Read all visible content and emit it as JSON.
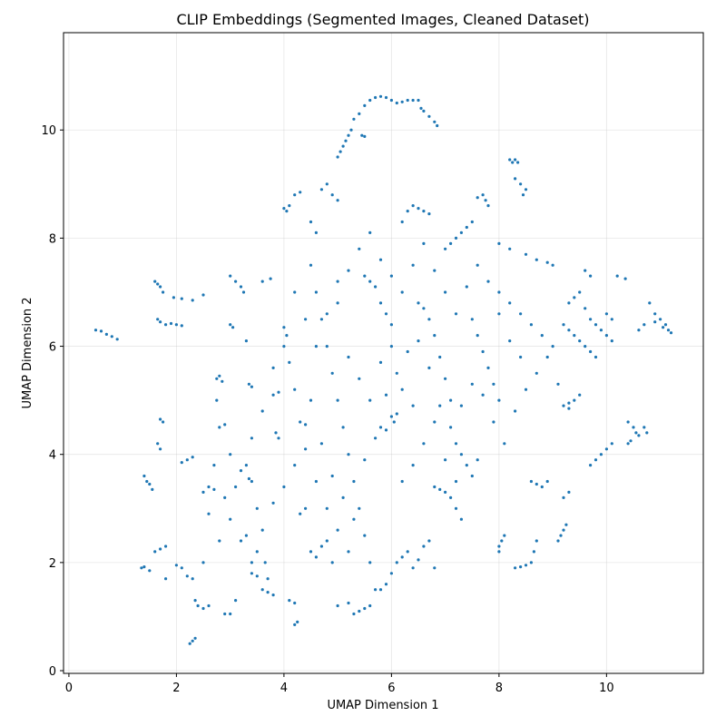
{
  "chart_data": {
    "type": "scatter",
    "title": "CLIP Embeddings (Segmented Images, Cleaned Dataset)",
    "xlabel": "UMAP Dimension 1",
    "ylabel": "UMAP Dimension 2",
    "xlim": [
      -0.1,
      11.8
    ],
    "ylim": [
      -0.05,
      11.8
    ],
    "xticks": [
      0,
      2,
      4,
      6,
      8,
      10
    ],
    "yticks": [
      0,
      2,
      4,
      6,
      8,
      10
    ],
    "grid": true,
    "point_color": "#1f77b4",
    "legend": "none",
    "points": [
      [
        0.5,
        6.3
      ],
      [
        0.6,
        6.28
      ],
      [
        0.7,
        6.22
      ],
      [
        0.8,
        6.18
      ],
      [
        0.9,
        6.13
      ],
      [
        1.6,
        7.2
      ],
      [
        1.65,
        7.15
      ],
      [
        1.7,
        7.1
      ],
      [
        1.75,
        7.0
      ],
      [
        1.65,
        6.5
      ],
      [
        1.7,
        6.45
      ],
      [
        1.8,
        6.4
      ],
      [
        1.9,
        6.42
      ],
      [
        2.0,
        6.4
      ],
      [
        2.1,
        6.38
      ],
      [
        1.95,
        6.9
      ],
      [
        2.1,
        6.88
      ],
      [
        2.3,
        6.85
      ],
      [
        2.5,
        6.95
      ],
      [
        1.7,
        4.65
      ],
      [
        1.75,
        4.6
      ],
      [
        1.65,
        4.2
      ],
      [
        1.7,
        4.1
      ],
      [
        1.4,
        3.6
      ],
      [
        1.45,
        3.5
      ],
      [
        1.5,
        3.45
      ],
      [
        1.55,
        3.35
      ],
      [
        1.35,
        1.9
      ],
      [
        1.4,
        1.92
      ],
      [
        1.5,
        1.85
      ],
      [
        1.6,
        2.2
      ],
      [
        1.7,
        2.25
      ],
      [
        1.8,
        2.3
      ],
      [
        1.8,
        1.7
      ],
      [
        2.0,
        1.95
      ],
      [
        2.1,
        1.9
      ],
      [
        2.2,
        1.75
      ],
      [
        2.3,
        1.7
      ],
      [
        2.35,
        1.3
      ],
      [
        2.4,
        1.2
      ],
      [
        2.5,
        1.15
      ],
      [
        2.6,
        1.2
      ],
      [
        2.25,
        0.5
      ],
      [
        2.3,
        0.55
      ],
      [
        2.35,
        0.6
      ],
      [
        2.2,
        3.9
      ],
      [
        2.1,
        3.85
      ],
      [
        2.3,
        3.95
      ],
      [
        2.5,
        3.3
      ],
      [
        2.6,
        3.4
      ],
      [
        2.7,
        3.35
      ],
      [
        2.75,
        5.4
      ],
      [
        2.8,
        5.45
      ],
      [
        2.85,
        5.35
      ],
      [
        2.8,
        4.5
      ],
      [
        2.9,
        4.55
      ],
      [
        2.75,
        5.0
      ],
      [
        2.9,
        1.05
      ],
      [
        3.0,
        1.05
      ],
      [
        3.1,
        1.3
      ],
      [
        3.0,
        6.4
      ],
      [
        3.05,
        6.35
      ],
      [
        3.0,
        7.3
      ],
      [
        3.1,
        7.2
      ],
      [
        3.2,
        7.1
      ],
      [
        3.25,
        7.0
      ],
      [
        3.3,
        6.1
      ],
      [
        3.35,
        5.3
      ],
      [
        3.4,
        5.25
      ],
      [
        3.3,
        3.8
      ],
      [
        3.35,
        3.55
      ],
      [
        3.4,
        3.5
      ],
      [
        3.5,
        3.0
      ],
      [
        3.3,
        2.5
      ],
      [
        3.5,
        2.2
      ],
      [
        3.4,
        1.8
      ],
      [
        3.5,
        1.75
      ],
      [
        3.6,
        1.5
      ],
      [
        3.7,
        1.45
      ],
      [
        3.8,
        1.4
      ],
      [
        3.65,
        2.0
      ],
      [
        3.7,
        1.7
      ],
      [
        3.8,
        5.1
      ],
      [
        3.9,
        5.15
      ],
      [
        3.85,
        4.4
      ],
      [
        3.9,
        4.3
      ],
      [
        3.6,
        7.2
      ],
      [
        3.75,
        7.25
      ],
      [
        4.0,
        8.55
      ],
      [
        4.05,
        8.5
      ],
      [
        4.1,
        8.6
      ],
      [
        4.2,
        8.8
      ],
      [
        4.3,
        8.85
      ],
      [
        4.0,
        6.35
      ],
      [
        4.05,
        6.2
      ],
      [
        4.1,
        5.7
      ],
      [
        4.2,
        5.2
      ],
      [
        4.3,
        4.6
      ],
      [
        4.4,
        4.55
      ],
      [
        4.1,
        1.3
      ],
      [
        4.2,
        1.25
      ],
      [
        4.25,
        0.9
      ],
      [
        4.2,
        0.85
      ],
      [
        4.3,
        2.9
      ],
      [
        4.4,
        3.0
      ],
      [
        4.5,
        8.3
      ],
      [
        4.6,
        8.1
      ],
      [
        4.7,
        8.9
      ],
      [
        4.8,
        9.0
      ],
      [
        4.9,
        8.8
      ],
      [
        5.0,
        8.7
      ],
      [
        5.0,
        9.5
      ],
      [
        5.05,
        9.6
      ],
      [
        5.1,
        9.7
      ],
      [
        5.15,
        9.8
      ],
      [
        5.2,
        9.9
      ],
      [
        5.25,
        10.0
      ],
      [
        5.3,
        10.2
      ],
      [
        5.4,
        10.3
      ],
      [
        5.5,
        10.45
      ],
      [
        5.6,
        10.55
      ],
      [
        5.7,
        10.6
      ],
      [
        5.8,
        10.62
      ],
      [
        5.9,
        10.6
      ],
      [
        6.0,
        10.55
      ],
      [
        6.1,
        10.5
      ],
      [
        6.2,
        10.52
      ],
      [
        6.3,
        10.55
      ],
      [
        6.4,
        10.55
      ],
      [
        6.5,
        10.55
      ],
      [
        6.55,
        10.4
      ],
      [
        6.6,
        10.35
      ],
      [
        6.7,
        10.25
      ],
      [
        6.8,
        10.15
      ],
      [
        6.85,
        10.08
      ],
      [
        5.5,
        9.88
      ],
      [
        5.45,
        9.9
      ],
      [
        4.5,
        7.5
      ],
      [
        4.6,
        7.0
      ],
      [
        4.7,
        6.5
      ],
      [
        4.8,
        6.0
      ],
      [
        4.9,
        5.5
      ],
      [
        5.0,
        5.0
      ],
      [
        5.1,
        4.5
      ],
      [
        5.2,
        4.0
      ],
      [
        5.3,
        3.5
      ],
      [
        5.4,
        3.0
      ],
      [
        5.5,
        2.5
      ],
      [
        5.6,
        2.0
      ],
      [
        5.7,
        1.5
      ],
      [
        5.6,
        1.2
      ],
      [
        5.5,
        1.15
      ],
      [
        5.4,
        1.1
      ],
      [
        5.3,
        1.05
      ],
      [
        5.2,
        1.25
      ],
      [
        5.0,
        1.2
      ],
      [
        4.5,
        2.2
      ],
      [
        4.6,
        2.1
      ],
      [
        4.7,
        2.3
      ],
      [
        4.8,
        2.4
      ],
      [
        4.9,
        2.0
      ],
      [
        5.5,
        7.3
      ],
      [
        5.6,
        7.2
      ],
      [
        5.7,
        7.1
      ],
      [
        5.8,
        6.8
      ],
      [
        5.9,
        6.6
      ],
      [
        6.0,
        6.4
      ],
      [
        6.0,
        4.7
      ],
      [
        6.05,
        4.6
      ],
      [
        6.1,
        4.75
      ],
      [
        5.8,
        4.5
      ],
      [
        5.9,
        4.45
      ],
      [
        6.2,
        8.3
      ],
      [
        6.3,
        8.5
      ],
      [
        6.4,
        8.6
      ],
      [
        6.5,
        8.55
      ],
      [
        6.6,
        8.5
      ],
      [
        6.7,
        8.45
      ],
      [
        6.1,
        2.0
      ],
      [
        6.2,
        2.1
      ],
      [
        6.3,
        2.2
      ],
      [
        6.4,
        1.9
      ],
      [
        6.5,
        2.05
      ],
      [
        6.6,
        2.3
      ],
      [
        6.7,
        2.4
      ],
      [
        6.0,
        1.8
      ],
      [
        5.9,
        1.6
      ],
      [
        5.8,
        1.5
      ],
      [
        6.8,
        1.9
      ],
      [
        6.5,
        6.8
      ],
      [
        6.6,
        6.7
      ],
      [
        6.7,
        6.5
      ],
      [
        6.8,
        6.2
      ],
      [
        6.9,
        5.8
      ],
      [
        7.0,
        5.4
      ],
      [
        7.1,
        5.0
      ],
      [
        6.8,
        3.4
      ],
      [
        6.9,
        3.35
      ],
      [
        7.0,
        3.3
      ],
      [
        7.1,
        3.2
      ],
      [
        7.2,
        3.0
      ],
      [
        7.3,
        2.8
      ],
      [
        7.2,
        4.2
      ],
      [
        7.3,
        4.0
      ],
      [
        7.4,
        3.8
      ],
      [
        7.5,
        3.6
      ],
      [
        7.6,
        3.9
      ],
      [
        7.0,
        7.8
      ],
      [
        7.1,
        7.9
      ],
      [
        7.2,
        8.0
      ],
      [
        7.3,
        8.1
      ],
      [
        7.4,
        8.2
      ],
      [
        7.5,
        8.3
      ],
      [
        7.6,
        8.75
      ],
      [
        7.7,
        8.8
      ],
      [
        7.75,
        8.7
      ],
      [
        7.8,
        8.6
      ],
      [
        7.5,
        6.5
      ],
      [
        7.6,
        6.2
      ],
      [
        7.7,
        5.9
      ],
      [
        7.8,
        5.6
      ],
      [
        7.9,
        5.3
      ],
      [
        8.0,
        5.0
      ],
      [
        8.0,
        2.3
      ],
      [
        8.05,
        2.4
      ],
      [
        8.1,
        2.5
      ],
      [
        8.0,
        2.2
      ],
      [
        8.2,
        9.45
      ],
      [
        8.25,
        9.4
      ],
      [
        8.3,
        9.45
      ],
      [
        8.35,
        9.4
      ],
      [
        8.3,
        9.1
      ],
      [
        8.4,
        9.0
      ],
      [
        8.5,
        8.9
      ],
      [
        8.45,
        8.8
      ],
      [
        8.3,
        1.9
      ],
      [
        8.4,
        1.92
      ],
      [
        8.5,
        1.95
      ],
      [
        8.6,
        2.0
      ],
      [
        8.65,
        2.2
      ],
      [
        8.7,
        2.4
      ],
      [
        8.0,
        7.0
      ],
      [
        8.2,
        6.8
      ],
      [
        8.4,
        6.6
      ],
      [
        8.6,
        6.4
      ],
      [
        8.8,
        6.2
      ],
      [
        9.0,
        6.0
      ],
      [
        8.0,
        7.9
      ],
      [
        8.2,
        7.8
      ],
      [
        8.5,
        7.7
      ],
      [
        8.7,
        7.6
      ],
      [
        8.9,
        7.55
      ],
      [
        9.0,
        7.5
      ],
      [
        8.6,
        3.5
      ],
      [
        8.7,
        3.45
      ],
      [
        8.8,
        3.4
      ],
      [
        8.9,
        3.5
      ],
      [
        9.1,
        2.4
      ],
      [
        9.15,
        2.5
      ],
      [
        9.2,
        2.6
      ],
      [
        9.25,
        2.7
      ],
      [
        9.2,
        3.2
      ],
      [
        9.3,
        3.3
      ],
      [
        9.2,
        4.9
      ],
      [
        9.3,
        4.95
      ],
      [
        9.4,
        5.0
      ],
      [
        9.5,
        5.1
      ],
      [
        9.3,
        4.85
      ],
      [
        9.2,
        6.4
      ],
      [
        9.3,
        6.3
      ],
      [
        9.4,
        6.2
      ],
      [
        9.5,
        6.1
      ],
      [
        9.6,
        6.0
      ],
      [
        9.7,
        5.9
      ],
      [
        9.8,
        5.8
      ],
      [
        9.3,
        6.8
      ],
      [
        9.4,
        6.9
      ],
      [
        9.5,
        7.0
      ],
      [
        9.6,
        6.7
      ],
      [
        9.7,
        6.5
      ],
      [
        9.8,
        6.4
      ],
      [
        9.9,
        6.3
      ],
      [
        10.0,
        6.2
      ],
      [
        10.1,
        6.1
      ],
      [
        10.0,
        6.6
      ],
      [
        10.1,
        6.5
      ],
      [
        9.6,
        7.4
      ],
      [
        9.7,
        7.3
      ],
      [
        10.2,
        7.3
      ],
      [
        10.35,
        7.25
      ],
      [
        9.7,
        3.8
      ],
      [
        9.8,
        3.9
      ],
      [
        9.9,
        4.0
      ],
      [
        10.0,
        4.1
      ],
      [
        10.1,
        4.2
      ],
      [
        10.4,
        4.6
      ],
      [
        10.5,
        4.5
      ],
      [
        10.55,
        4.4
      ],
      [
        10.6,
        4.35
      ],
      [
        10.7,
        4.5
      ],
      [
        10.75,
        4.4
      ],
      [
        10.4,
        4.2
      ],
      [
        10.45,
        4.25
      ],
      [
        10.8,
        6.8
      ],
      [
        10.9,
        6.6
      ],
      [
        11.0,
        6.5
      ],
      [
        11.1,
        6.4
      ],
      [
        11.15,
        6.3
      ],
      [
        11.2,
        6.25
      ],
      [
        10.6,
        6.3
      ],
      [
        10.7,
        6.4
      ],
      [
        10.9,
        6.45
      ],
      [
        11.05,
        6.35
      ],
      [
        3.0,
        4.0
      ],
      [
        3.2,
        3.7
      ],
      [
        3.4,
        4.3
      ],
      [
        3.6,
        4.8
      ],
      [
        3.8,
        5.6
      ],
      [
        4.0,
        6.0
      ],
      [
        4.5,
        5.0
      ],
      [
        4.7,
        4.2
      ],
      [
        4.9,
        3.6
      ],
      [
        5.1,
        3.2
      ],
      [
        5.3,
        2.8
      ],
      [
        5.5,
        3.9
      ],
      [
        5.7,
        4.3
      ],
      [
        5.9,
        5.1
      ],
      [
        6.1,
        5.5
      ],
      [
        6.3,
        5.9
      ],
      [
        6.5,
        6.1
      ],
      [
        6.7,
        5.6
      ],
      [
        6.9,
        4.9
      ],
      [
        7.1,
        4.5
      ],
      [
        7.3,
        4.9
      ],
      [
        7.5,
        5.3
      ],
      [
        7.7,
        5.1
      ],
      [
        7.9,
        4.6
      ],
      [
        8.1,
        4.2
      ],
      [
        8.3,
        4.8
      ],
      [
        8.5,
        5.2
      ],
      [
        8.7,
        5.5
      ],
      [
        8.9,
        5.8
      ],
      [
        9.1,
        5.3
      ],
      [
        6.2,
        3.5
      ],
      [
        6.4,
        3.8
      ],
      [
        6.6,
        4.2
      ],
      [
        6.8,
        4.6
      ],
      [
        7.0,
        3.9
      ],
      [
        7.2,
        3.5
      ],
      [
        5.0,
        6.8
      ],
      [
        5.2,
        7.4
      ],
      [
        5.4,
        7.8
      ],
      [
        5.6,
        8.1
      ],
      [
        5.8,
        7.6
      ],
      [
        6.0,
        7.3
      ],
      [
        6.2,
        7.0
      ],
      [
        6.4,
        7.5
      ],
      [
        6.6,
        7.9
      ],
      [
        6.8,
        7.4
      ],
      [
        7.0,
        7.0
      ],
      [
        7.2,
        6.6
      ],
      [
        7.4,
        7.1
      ],
      [
        7.6,
        7.5
      ],
      [
        7.8,
        7.2
      ],
      [
        8.0,
        6.6
      ],
      [
        8.2,
        6.1
      ],
      [
        8.4,
        5.8
      ],
      [
        4.2,
        7.0
      ],
      [
        4.4,
        6.5
      ],
      [
        4.6,
        6.0
      ],
      [
        4.8,
        6.6
      ],
      [
        5.0,
        7.2
      ],
      [
        5.2,
        5.8
      ],
      [
        5.4,
        5.4
      ],
      [
        5.6,
        5.0
      ],
      [
        5.8,
        5.7
      ],
      [
        6.0,
        6.0
      ],
      [
        6.2,
        5.2
      ],
      [
        6.4,
        4.9
      ],
      [
        3.0,
        2.8
      ],
      [
        3.2,
        2.4
      ],
      [
        3.4,
        2.0
      ],
      [
        3.6,
        2.6
      ],
      [
        3.8,
        3.1
      ],
      [
        4.0,
        3.4
      ],
      [
        4.2,
        3.8
      ],
      [
        4.4,
        4.1
      ],
      [
        4.6,
        3.5
      ],
      [
        4.8,
        3.0
      ],
      [
        5.0,
        2.6
      ],
      [
        5.2,
        2.2
      ],
      [
        2.7,
        3.8
      ],
      [
        2.9,
        3.2
      ],
      [
        3.1,
        3.4
      ],
      [
        2.6,
        2.9
      ],
      [
        2.8,
        2.4
      ],
      [
        2.5,
        2.0
      ]
    ]
  }
}
